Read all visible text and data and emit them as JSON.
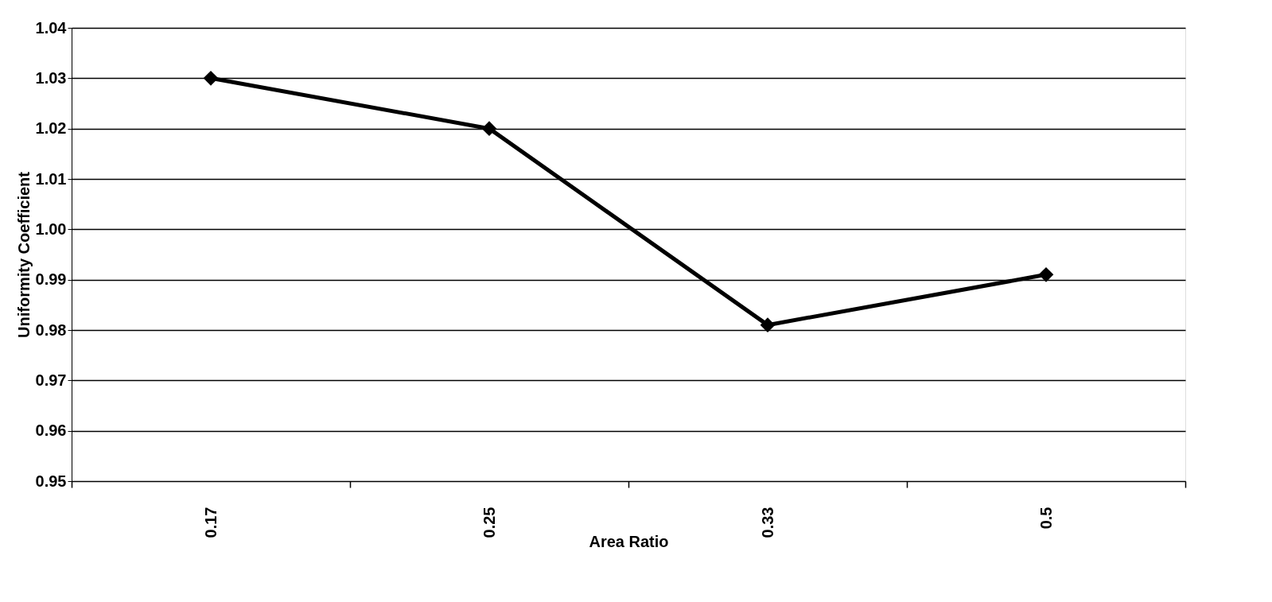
{
  "chart_data": {
    "type": "line",
    "xlabel": "Area Ratio",
    "ylabel": "Uniformity Coefficient",
    "categories": [
      "0.17",
      "0.25",
      "0.33",
      "0.5"
    ],
    "series": [
      {
        "color": "#000000",
        "values": [
          1.03,
          1.02,
          0.981,
          0.991
        ]
      }
    ],
    "ylim": [
      0.95,
      1.04
    ],
    "yticks": [
      0.95,
      0.96,
      0.97,
      0.98,
      0.99,
      {
        "value": 1.0,
        "label": "1.00"
      },
      1.01,
      1.02,
      1.03,
      1.04
    ],
    "grid": "y",
    "marker": "diamond",
    "line_style": "solid"
  }
}
